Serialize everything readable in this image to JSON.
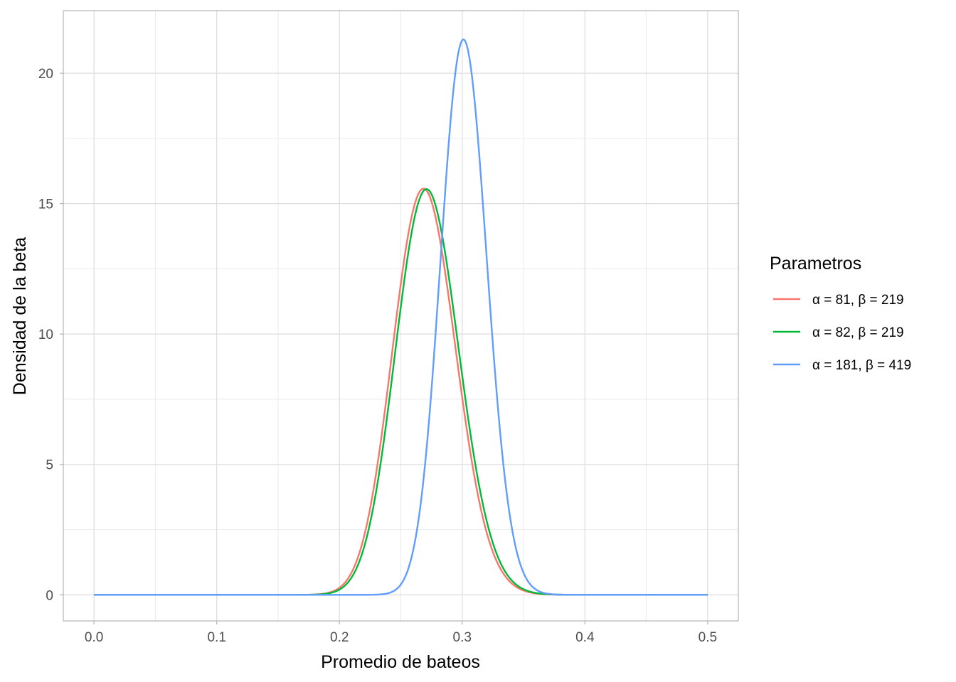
{
  "chart_data": {
    "type": "line",
    "title": "",
    "xlabel": "Promedio de bateos",
    "ylabel": "Densidad de la beta",
    "xlim": [
      -0.025,
      0.525
    ],
    "ylim": [
      -1.0,
      22.4
    ],
    "x_ticks": [
      0.0,
      0.1,
      0.2,
      0.3,
      0.4,
      0.5
    ],
    "x_tick_labels": [
      "0.0",
      "0.1",
      "0.2",
      "0.3",
      "0.4",
      "0.5"
    ],
    "y_ticks": [
      0,
      5,
      10,
      15,
      20
    ],
    "y_tick_labels": [
      "0",
      "5",
      "10",
      "15",
      "20"
    ],
    "x_range": [
      0.0,
      0.5
    ],
    "grid": true,
    "legend": {
      "title": "Parametros",
      "position": "right"
    },
    "series": [
      {
        "name": "α = 81, β = 219",
        "alpha": 81,
        "beta": 219,
        "color": "#F8766D"
      },
      {
        "name": "α = 82, β = 219",
        "alpha": 82,
        "beta": 219,
        "color": "#00BA38"
      },
      {
        "name": "α = 181, β = 419",
        "alpha": 181,
        "beta": 419,
        "color": "#619CFF"
      }
    ]
  }
}
